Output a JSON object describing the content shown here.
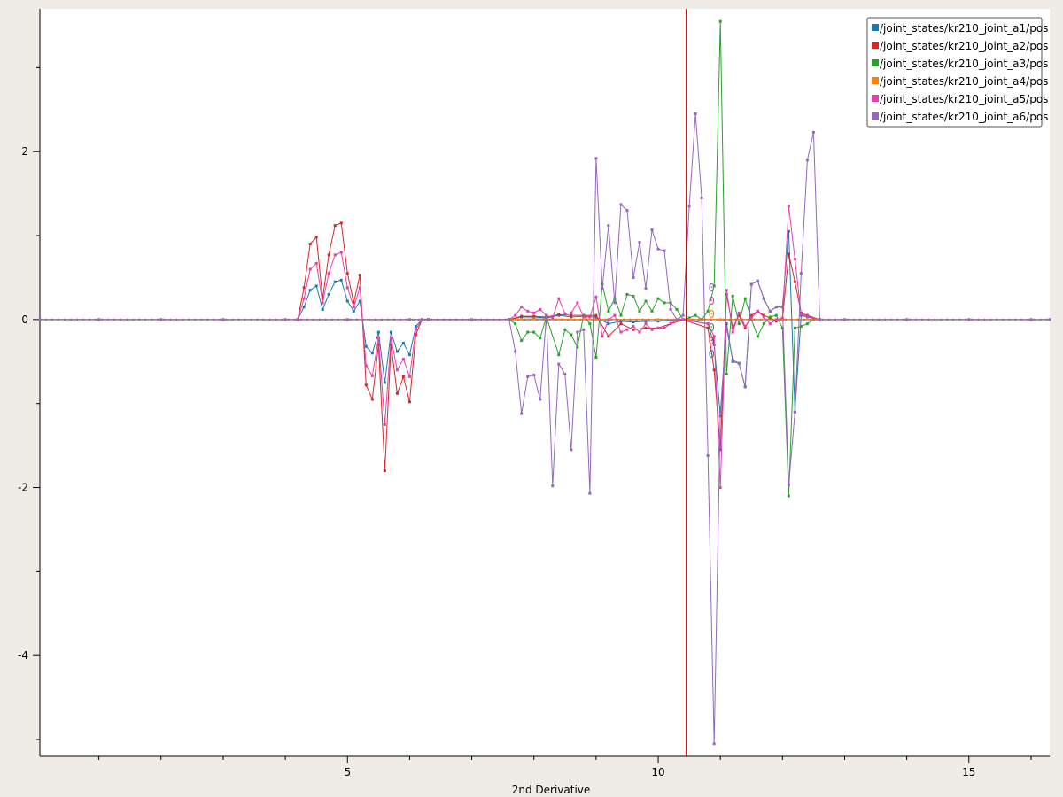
{
  "chart_data": {
    "type": "line",
    "title": "",
    "xlabel": "2nd Derivative",
    "ylabel": "",
    "xlim": [
      0.05,
      16.3
    ],
    "ylim": [
      -5.2,
      3.7
    ],
    "xticks": [
      5,
      10,
      15
    ],
    "yticks": [
      2,
      0,
      -2,
      -4
    ],
    "grid": false,
    "legend_position": "top-right",
    "cursor_x": 10.45,
    "cursor_color": "#b00000",
    "cursor_values": [
      "0",
      "0",
      "0",
      "0",
      "0",
      "0"
    ],
    "series": [
      {
        "name": "/joint_states/kr210_joint_a1/pos",
        "color": "#1f77b4",
        "x": [
          4.2,
          4.3,
          4.4,
          4.5,
          4.6,
          4.7,
          4.8,
          4.9,
          5.0,
          5.1,
          5.2,
          5.3,
          5.4,
          5.5,
          5.6,
          5.7,
          5.8,
          5.9,
          6.0,
          6.1,
          6.2,
          6.3,
          7.6,
          7.8,
          8.0,
          8.2,
          8.4,
          8.6,
          8.8,
          9.0,
          9.2,
          9.4,
          9.6,
          9.8,
          10.0,
          10.2,
          10.4,
          10.8,
          10.9,
          11.0,
          11.1,
          11.2,
          11.3,
          11.4,
          11.5,
          11.6,
          11.7,
          11.8,
          11.9,
          12.0,
          12.1,
          12.2,
          12.3,
          12.4,
          12.6
        ],
        "y": [
          0,
          0.15,
          0.35,
          0.4,
          0.12,
          0.3,
          0.45,
          0.47,
          0.22,
          0.1,
          0.22,
          -0.32,
          -0.4,
          -0.15,
          -0.75,
          -0.15,
          -0.38,
          -0.28,
          -0.42,
          -0.08,
          0,
          0,
          0,
          0.03,
          0.03,
          0.02,
          0.05,
          0.03,
          0.04,
          0.03,
          -0.05,
          -0.02,
          -0.03,
          -0.02,
          -0.02,
          -0.01,
          0,
          -0.05,
          -0.3,
          -1.15,
          -0.05,
          -0.5,
          -0.52,
          -0.8,
          0.42,
          0.46,
          0.25,
          0.1,
          0.15,
          0.15,
          1.05,
          -1.1,
          0.05,
          0.03,
          0
        ]
      },
      {
        "name": "/joint_states/kr210_joint_a2/pos",
        "color": "#d62728",
        "x": [
          4.2,
          4.3,
          4.4,
          4.5,
          4.6,
          4.7,
          4.8,
          4.9,
          5.0,
          5.1,
          5.2,
          5.3,
          5.4,
          5.5,
          5.6,
          5.7,
          5.8,
          5.9,
          6.0,
          6.1,
          6.2,
          6.3,
          7.6,
          7.8,
          8.0,
          8.2,
          8.4,
          8.6,
          8.8,
          9.0,
          9.2,
          9.4,
          9.6,
          9.8,
          10.0,
          10.2,
          10.4,
          10.8,
          10.9,
          11.0,
          11.1,
          11.2,
          11.3,
          11.4,
          11.5,
          11.6,
          11.7,
          11.8,
          11.9,
          12.0,
          12.1,
          12.2,
          12.3,
          12.4,
          12.6
        ],
        "y": [
          0,
          0.38,
          0.9,
          0.98,
          0.25,
          0.77,
          1.12,
          1.15,
          0.55,
          0.2,
          0.53,
          -0.78,
          -0.95,
          -0.3,
          -1.8,
          -0.3,
          -0.88,
          -0.68,
          -0.98,
          -0.18,
          0,
          0,
          0,
          0.04,
          0.04,
          0.03,
          0.06,
          0.05,
          0.05,
          0.05,
          -0.2,
          -0.05,
          -0.12,
          -0.1,
          -0.1,
          -0.05,
          0,
          -0.1,
          -0.6,
          -1.55,
          0.3,
          -0.1,
          0.05,
          -0.1,
          0.05,
          0.1,
          0.05,
          0.02,
          -0.02,
          0,
          0.78,
          0.45,
          0.08,
          0.05,
          0
        ]
      },
      {
        "name": "/joint_states/kr210_joint_a3/pos",
        "color": "#2ca02c",
        "x": [
          7.6,
          7.7,
          7.8,
          7.9,
          8.0,
          8.1,
          8.2,
          8.4,
          8.5,
          8.6,
          8.7,
          8.8,
          8.9,
          9.0,
          9.1,
          9.2,
          9.3,
          9.4,
          9.5,
          9.6,
          9.7,
          9.8,
          9.9,
          10.0,
          10.1,
          10.2,
          10.3,
          10.4,
          10.5,
          10.6,
          10.7,
          10.8,
          10.9,
          11.0,
          11.1,
          11.2,
          11.3,
          11.4,
          11.5,
          11.6,
          11.7,
          11.8,
          11.9,
          12.0,
          12.1,
          12.2,
          12.3,
          12.4,
          12.5,
          12.6
        ],
        "y": [
          0,
          -0.05,
          -0.25,
          -0.15,
          -0.15,
          -0.22,
          0.03,
          -0.42,
          -0.12,
          -0.18,
          -0.33,
          0.05,
          -0.05,
          -0.45,
          0.42,
          0.1,
          0.25,
          0.05,
          0.3,
          0.28,
          0.1,
          0.22,
          0.1,
          0.25,
          0.2,
          0.2,
          0.12,
          0,
          0.02,
          0.05,
          0.0,
          0.1,
          0.4,
          3.55,
          -0.65,
          0.28,
          -0.05,
          0.25,
          0.0,
          -0.2,
          -0.05,
          0.03,
          0.05,
          -0.1,
          -2.1,
          -0.1,
          -0.08,
          -0.05,
          0,
          0
        ]
      },
      {
        "name": "/joint_states/kr210_joint_a4/pos",
        "color": "#ff7f0e",
        "x": [
          0.05,
          1,
          2,
          3,
          4,
          4.2,
          5,
          6,
          6.3,
          7,
          7.6,
          8,
          9,
          10,
          10.4,
          10.5,
          11,
          12,
          12.6,
          13,
          14,
          15,
          16,
          16.3
        ],
        "y": [
          0,
          0,
          0,
          0,
          0,
          0,
          0,
          0,
          0,
          0,
          0,
          0.01,
          0,
          0,
          0,
          0,
          0,
          0,
          0,
          0,
          0,
          0,
          0,
          0
        ]
      },
      {
        "name": "/joint_states/kr210_joint_a5/pos",
        "color": "#e041b0",
        "x": [
          4.2,
          4.3,
          4.4,
          4.5,
          4.6,
          4.7,
          4.8,
          4.9,
          5.0,
          5.1,
          5.2,
          5.3,
          5.4,
          5.5,
          5.6,
          5.7,
          5.8,
          5.9,
          6.0,
          6.1,
          6.2,
          6.3,
          7.6,
          7.7,
          7.8,
          7.9,
          8.0,
          8.1,
          8.2,
          8.3,
          8.4,
          8.5,
          8.6,
          8.7,
          8.8,
          8.9,
          9.0,
          9.1,
          9.2,
          9.3,
          9.4,
          9.5,
          9.6,
          9.7,
          9.8,
          9.9,
          10.0,
          10.1,
          10.2,
          10.3,
          10.4,
          10.8,
          10.9,
          11.0,
          11.1,
          11.2,
          11.3,
          11.4,
          11.5,
          11.6,
          11.7,
          11.8,
          11.9,
          12.0,
          12.1,
          12.2,
          12.3,
          12.4,
          12.6
        ],
        "y": [
          0,
          0.25,
          0.6,
          0.67,
          0.2,
          0.55,
          0.77,
          0.8,
          0.38,
          0.15,
          0.38,
          -0.55,
          -0.67,
          -0.22,
          -1.25,
          -0.22,
          -0.6,
          -0.47,
          -0.68,
          -0.12,
          0,
          0,
          0,
          0.05,
          0.15,
          0.1,
          0.08,
          0.12,
          0.05,
          0.02,
          0.25,
          0.07,
          0.08,
          0.2,
          0.03,
          0.03,
          0.27,
          -0.2,
          0.0,
          0.05,
          -0.15,
          -0.12,
          -0.08,
          -0.15,
          -0.05,
          -0.12,
          -0.1,
          -0.1,
          -0.05,
          0,
          0,
          -0.05,
          -0.2,
          -2.0,
          0.35,
          -0.15,
          0.08,
          -0.08,
          0.02,
          0.1,
          0.03,
          -0.05,
          0,
          0.02,
          1.35,
          0.72,
          0.06,
          0.04,
          0
        ]
      },
      {
        "name": "/joint_states/kr210_joint_a6/pos",
        "color": "#9467bd",
        "x": [
          0.05,
          1,
          2,
          3,
          4,
          5,
          6,
          6.3,
          7,
          7.6,
          7.7,
          7.8,
          7.9,
          8.0,
          8.1,
          8.2,
          8.3,
          8.4,
          8.5,
          8.6,
          8.7,
          8.8,
          8.9,
          9.0,
          9.1,
          9.2,
          9.3,
          9.4,
          9.5,
          9.6,
          9.7,
          9.8,
          9.9,
          10.0,
          10.1,
          10.2,
          10.3,
          10.4,
          10.5,
          10.6,
          10.7,
          10.8,
          10.9,
          11.0,
          11.1,
          11.2,
          11.3,
          11.4,
          11.5,
          11.6,
          11.7,
          11.8,
          11.9,
          12.0,
          12.1,
          12.2,
          12.3,
          12.4,
          12.5,
          12.6,
          13,
          14,
          15,
          16,
          16.3
        ],
        "y": [
          0,
          0,
          0,
          0,
          0,
          0,
          0,
          0,
          0,
          0,
          -0.38,
          -1.12,
          -0.68,
          -0.66,
          -0.95,
          0.05,
          -1.98,
          -0.53,
          -0.65,
          -1.55,
          -0.15,
          -0.12,
          -2.07,
          1.92,
          0.37,
          1.12,
          0.2,
          1.37,
          1.3,
          0.5,
          0.92,
          0.37,
          1.07,
          0.84,
          0.82,
          0.12,
          0,
          0.05,
          1.35,
          2.45,
          1.45,
          -1.62,
          -5.05,
          -1.1,
          -0.1,
          -0.48,
          -0.52,
          -0.8,
          0.42,
          0.46,
          0.25,
          0.1,
          0.15,
          0.15,
          -1.97,
          -1.1,
          0.55,
          1.9,
          2.23,
          0,
          0,
          0,
          0,
          0,
          0
        ]
      }
    ]
  }
}
